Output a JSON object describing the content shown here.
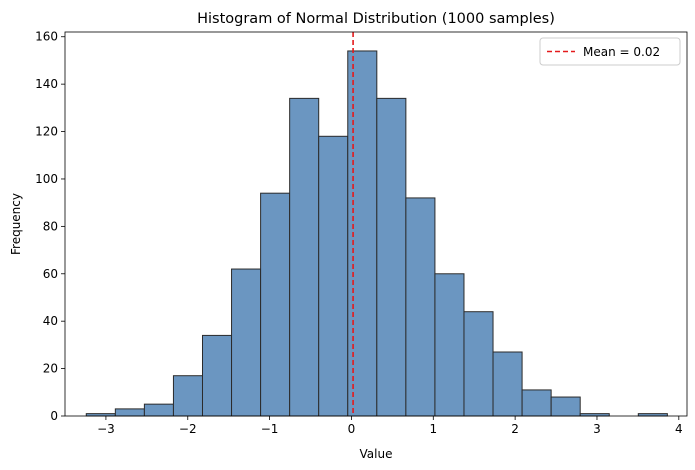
{
  "chart_data": {
    "type": "bar",
    "title": "Histogram of Normal Distribution (1000 samples)",
    "xlabel": "Value",
    "ylabel": "Frequency",
    "xlim": [
      -3.5,
      4.1
    ],
    "ylim": [
      0,
      162
    ],
    "xticks": [
      -3,
      -2,
      -1,
      0,
      1,
      2,
      3,
      4
    ],
    "yticks": [
      0,
      20,
      40,
      60,
      80,
      100,
      120,
      140,
      160
    ],
    "bin_edges": [
      -3.24,
      -2.885,
      -2.53,
      -2.175,
      -1.82,
      -1.465,
      -1.11,
      -0.755,
      -0.4,
      -0.045,
      0.31,
      0.665,
      1.02,
      1.375,
      1.73,
      2.085,
      2.44,
      2.795,
      3.15,
      3.505,
      3.86
    ],
    "values": [
      1,
      3,
      5,
      17,
      34,
      62,
      94,
      134,
      118,
      154,
      134,
      92,
      60,
      44,
      27,
      11,
      8,
      1,
      0,
      1
    ],
    "mean": 0.02,
    "legend": {
      "entries": [
        "Mean = 0.02"
      ],
      "placement": "top-right"
    },
    "colors": {
      "bar_fill": "#6b96c1",
      "bar_edge": "#2b2b2b",
      "mean_line": "#e41a1c"
    },
    "grid": false
  }
}
